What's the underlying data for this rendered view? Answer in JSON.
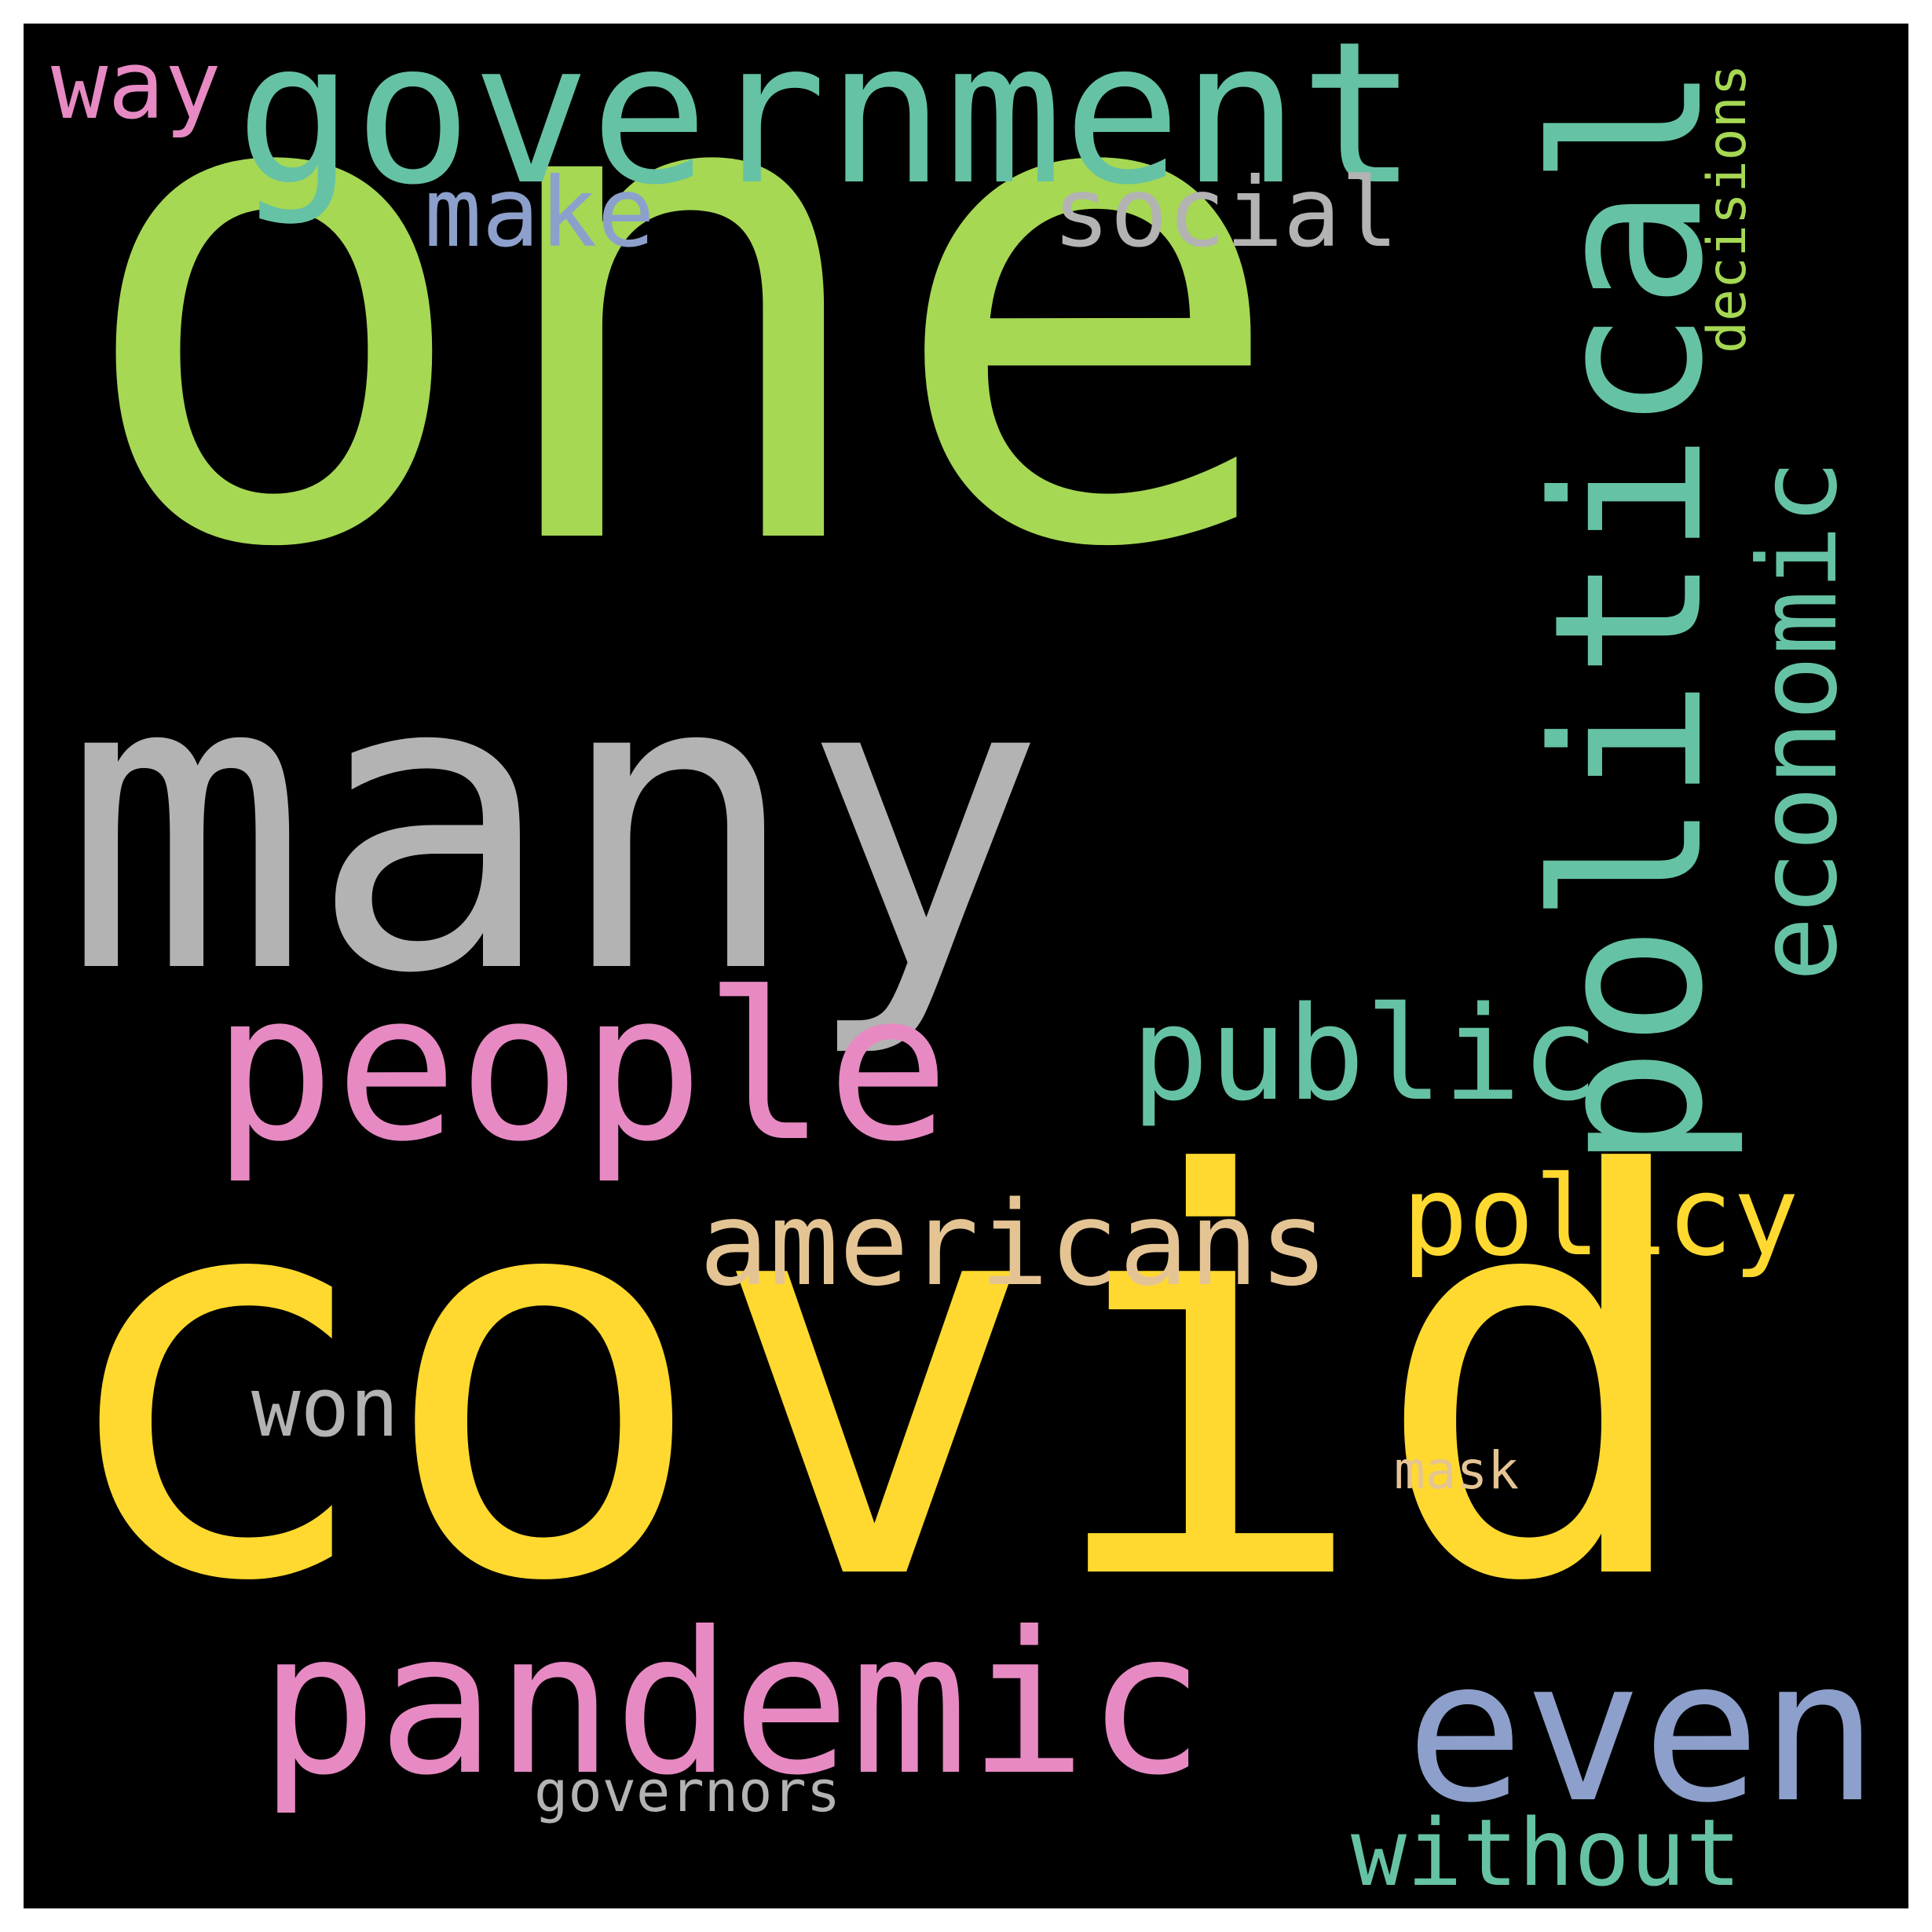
{
  "words": [
    {
      "text": "one",
      "color": "#a6d854",
      "orientation": "horizontal"
    },
    {
      "text": "covid",
      "color": "#ffd92f",
      "orientation": "horizontal"
    },
    {
      "text": "many",
      "color": "#b3b3b3",
      "orientation": "horizontal"
    },
    {
      "text": "government",
      "color": "#66c2a5",
      "orientation": "horizontal"
    },
    {
      "text": "political",
      "color": "#66c2a5",
      "orientation": "vertical"
    },
    {
      "text": "people",
      "color": "#e78ac3",
      "orientation": "horizontal"
    },
    {
      "text": "pandemic",
      "color": "#e78ac3",
      "orientation": "horizontal"
    },
    {
      "text": "even",
      "color": "#8da0cb",
      "orientation": "horizontal"
    },
    {
      "text": "public",
      "color": "#66c2a5",
      "orientation": "horizontal"
    },
    {
      "text": "americans",
      "color": "#e5c494",
      "orientation": "horizontal"
    },
    {
      "text": "policy",
      "color": "#ffd92f",
      "orientation": "horizontal"
    },
    {
      "text": "economic",
      "color": "#66c2a5",
      "orientation": "vertical"
    },
    {
      "text": "social",
      "color": "#b3b3b3",
      "orientation": "horizontal"
    },
    {
      "text": "make",
      "color": "#8da0cb",
      "orientation": "horizontal"
    },
    {
      "text": "way",
      "color": "#e78ac3",
      "orientation": "horizontal"
    },
    {
      "text": "decisions",
      "color": "#a6d854",
      "orientation": "vertical"
    },
    {
      "text": "won",
      "color": "#b3b3b3",
      "orientation": "horizontal"
    },
    {
      "text": "without",
      "color": "#66c2a5",
      "orientation": "horizontal"
    },
    {
      "text": "mask",
      "color": "#e5c494",
      "orientation": "horizontal"
    },
    {
      "text": "governors",
      "color": "#b3b3b3",
      "orientation": "horizontal"
    }
  ]
}
